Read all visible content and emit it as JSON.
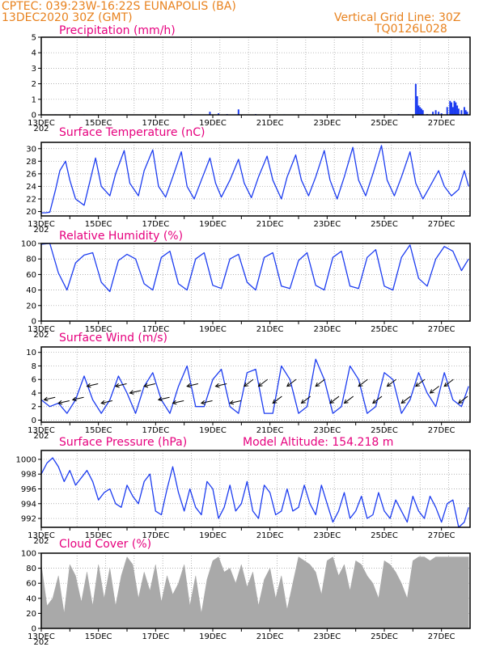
{
  "header": {
    "line1_left": "CPTEC:   039:23W-16:22S  EUNAPOLIS (BA)",
    "line2_left": "13DEC2020 30Z (GMT)",
    "line1_right": "Vertical Grid Line: 30Z",
    "line2_right": "TQ0126L028"
  },
  "colors": {
    "header": "#e8821e",
    "title": "#e6007e",
    "series": "#1c3cf0",
    "cloud": "#a9a9a9",
    "grid": "#9a9a9a"
  },
  "x_labels": [
    "13DEC",
    "15DEC",
    "17DEC",
    "19DEC",
    "21DEC",
    "23DEC",
    "25DEC",
    "27DEC"
  ],
  "x_year_fragment": "202",
  "chart_data": [
    {
      "type": "bar",
      "title": "Precipitation (mm/h)",
      "ylim": [
        0,
        5
      ],
      "yticks": [
        0,
        1,
        2,
        3,
        4,
        5
      ],
      "xlim_days": [
        13,
        28
      ],
      "x": [
        13.5,
        14.5,
        15.5,
        16.5,
        17.5,
        18.25,
        18.9,
        19.2,
        19.5,
        19.9,
        20.5,
        21.5,
        22.5,
        23.5,
        24.5,
        25.5,
        26.1,
        26.15,
        26.2,
        26.25,
        26.3,
        26.35,
        26.5,
        26.7,
        26.8,
        26.9,
        27.0,
        27.2,
        27.3,
        27.35,
        27.4,
        27.45,
        27.5,
        27.55,
        27.6,
        27.7,
        27.8,
        27.85,
        27.9
      ],
      "values": [
        0.03,
        0.03,
        0.03,
        0.03,
        0.03,
        0.05,
        0.2,
        0.1,
        0.05,
        0.35,
        0.05,
        0.03,
        0.03,
        0.03,
        0.03,
        0.05,
        2.0,
        1.2,
        0.6,
        0.5,
        0.4,
        0.3,
        0.05,
        0.2,
        0.3,
        0.2,
        0.1,
        0.5,
        0.9,
        0.8,
        0.5,
        0.9,
        0.8,
        0.6,
        0.4,
        0.3,
        0.5,
        0.3,
        0.2
      ]
    },
    {
      "type": "line",
      "title": "Surface Temperature (nC)",
      "ylim": [
        19.3,
        31
      ],
      "yticks": [
        20,
        22,
        24,
        26,
        28,
        30
      ],
      "x": [
        13.0,
        13.15,
        13.3,
        13.5,
        13.65,
        13.85,
        14.0,
        14.2,
        14.5,
        14.9,
        15.1,
        15.4,
        15.6,
        15.9,
        16.1,
        16.4,
        16.6,
        16.9,
        17.1,
        17.35,
        17.6,
        17.9,
        18.1,
        18.35,
        18.6,
        18.9,
        19.1,
        19.3,
        19.6,
        19.9,
        20.1,
        20.35,
        20.6,
        20.9,
        21.1,
        21.4,
        21.6,
        21.9,
        22.1,
        22.35,
        22.6,
        22.9,
        23.1,
        23.35,
        23.6,
        23.9,
        24.1,
        24.35,
        24.6,
        24.9,
        25.1,
        25.35,
        25.6,
        25.9,
        26.1,
        26.35,
        26.6,
        26.9,
        27.1,
        27.35,
        27.6,
        27.8,
        27.95
      ],
      "values": [
        19.8,
        19.8,
        19.9,
        23.5,
        26.5,
        28.0,
        25.0,
        22.0,
        21.0,
        28.5,
        24.0,
        22.5,
        26.0,
        29.7,
        24.5,
        22.5,
        26.5,
        29.8,
        24.0,
        22.3,
        25.5,
        29.5,
        24.0,
        22.0,
        25.0,
        28.5,
        24.5,
        22.3,
        25.0,
        28.3,
        24.5,
        22.2,
        25.5,
        28.8,
        25.0,
        22.0,
        25.5,
        29.0,
        25.0,
        22.5,
        25.5,
        29.7,
        25.0,
        22.0,
        25.5,
        30.2,
        25.0,
        22.5,
        26.0,
        30.5,
        25.0,
        22.5,
        25.5,
        29.5,
        24.5,
        22.0,
        24.0,
        26.5,
        24.0,
        22.5,
        23.5,
        26.5,
        24.0
      ]
    },
    {
      "type": "line",
      "title": "Relative Humidity (%)",
      "ylim": [
        0,
        100
      ],
      "yticks": [
        0,
        20,
        40,
        60,
        80,
        100
      ],
      "x": [
        13.0,
        13.3,
        13.6,
        13.9,
        14.2,
        14.5,
        14.8,
        15.1,
        15.4,
        15.7,
        16.0,
        16.3,
        16.6,
        16.9,
        17.2,
        17.5,
        17.8,
        18.1,
        18.4,
        18.7,
        19.0,
        19.3,
        19.6,
        19.9,
        20.2,
        20.5,
        20.8,
        21.1,
        21.4,
        21.7,
        22.0,
        22.3,
        22.6,
        22.9,
        23.2,
        23.5,
        23.8,
        24.1,
        24.4,
        24.7,
        25.0,
        25.3,
        25.6,
        25.9,
        26.2,
        26.5,
        26.8,
        27.1,
        27.4,
        27.7,
        27.95
      ],
      "values": [
        99,
        100,
        62,
        40,
        75,
        85,
        88,
        50,
        38,
        78,
        86,
        80,
        48,
        40,
        82,
        90,
        48,
        40,
        80,
        88,
        46,
        42,
        80,
        86,
        50,
        40,
        82,
        88,
        45,
        42,
        78,
        88,
        46,
        40,
        82,
        90,
        45,
        42,
        82,
        92,
        45,
        40,
        82,
        98,
        55,
        45,
        80,
        96,
        90,
        65,
        80
      ]
    },
    {
      "type": "line",
      "title": "Surface Wind (m/s)",
      "ylim": [
        -0.3,
        10.8
      ],
      "yticks": [
        0,
        2,
        4,
        6,
        8,
        10
      ],
      "x": [
        13.0,
        13.3,
        13.6,
        13.9,
        14.2,
        14.5,
        14.8,
        15.1,
        15.4,
        15.7,
        16.0,
        16.3,
        16.6,
        16.9,
        17.2,
        17.5,
        17.8,
        18.1,
        18.4,
        18.7,
        19.0,
        19.3,
        19.6,
        19.9,
        20.2,
        20.5,
        20.8,
        21.1,
        21.4,
        21.7,
        22.0,
        22.3,
        22.6,
        22.9,
        23.2,
        23.5,
        23.8,
        24.1,
        24.4,
        24.7,
        25.0,
        25.3,
        25.6,
        25.9,
        26.2,
        26.5,
        26.8,
        27.1,
        27.4,
        27.7,
        27.95
      ],
      "values": [
        3,
        2,
        2.5,
        1,
        3,
        6.5,
        3,
        1,
        3,
        6.5,
        4,
        1,
        5,
        7,
        3,
        1,
        5,
        8,
        2,
        2,
        6,
        7.5,
        2,
        1,
        7,
        7.5,
        1,
        1,
        8,
        6,
        1,
        2,
        9,
        6,
        1,
        2,
        8,
        6,
        1,
        2,
        7,
        6,
        1,
        3,
        7,
        4,
        2,
        7,
        3,
        2,
        5
      ]
    },
    {
      "type": "line",
      "title": "Surface Pressure (hPa)",
      "annotation": "Model Altitude: 154.218  m",
      "ylim": [
        990.8,
        1001.2
      ],
      "yticks": [
        992,
        994,
        996,
        998,
        1000
      ],
      "x": [
        13.0,
        13.2,
        13.4,
        13.6,
        13.8,
        14.0,
        14.2,
        14.4,
        14.6,
        14.8,
        15.0,
        15.2,
        15.4,
        15.6,
        15.8,
        16.0,
        16.2,
        16.4,
        16.6,
        16.8,
        17.0,
        17.2,
        17.4,
        17.6,
        17.8,
        18.0,
        18.2,
        18.4,
        18.6,
        18.8,
        19.0,
        19.2,
        19.4,
        19.6,
        19.8,
        20.0,
        20.2,
        20.4,
        20.6,
        20.8,
        21.0,
        21.2,
        21.4,
        21.6,
        21.8,
        22.0,
        22.2,
        22.4,
        22.6,
        22.8,
        23.0,
        23.2,
        23.4,
        23.6,
        23.8,
        24.0,
        24.2,
        24.4,
        24.6,
        24.8,
        25.0,
        25.2,
        25.4,
        25.6,
        25.8,
        26.0,
        26.2,
        26.4,
        26.6,
        26.8,
        27.0,
        27.2,
        27.4,
        27.6,
        27.8,
        27.95
      ],
      "values": [
        998,
        999.5,
        1000.2,
        999,
        997,
        998.5,
        996.5,
        997.5,
        998.5,
        997,
        994.5,
        995.5,
        996,
        994,
        993.5,
        996.5,
        995,
        994,
        997,
        998,
        993,
        992.5,
        996,
        999,
        995.5,
        993,
        996,
        993.5,
        992.5,
        997,
        996,
        992,
        993.5,
        996.5,
        993,
        994,
        997,
        993,
        992,
        996.5,
        995.5,
        992.5,
        993,
        996,
        993,
        993.5,
        996.5,
        994,
        992.5,
        996.5,
        994,
        991.5,
        993,
        995.5,
        992,
        993,
        995,
        992,
        992.5,
        995.5,
        993,
        992,
        994.5,
        993,
        991.5,
        995,
        993,
        992,
        995,
        993.5,
        991.5,
        994,
        994.5,
        990.8,
        991.5,
        993.5
      ]
    },
    {
      "type": "area",
      "title": "Cloud Cover (%)",
      "ylim": [
        0,
        100
      ],
      "yticks": [
        0,
        20,
        40,
        60,
        80,
        100
      ],
      "x": [
        13.0,
        13.2,
        13.4,
        13.6,
        13.8,
        14.0,
        14.2,
        14.4,
        14.6,
        14.8,
        15.0,
        15.2,
        15.4,
        15.6,
        15.8,
        16.0,
        16.2,
        16.4,
        16.6,
        16.8,
        17.0,
        17.2,
        17.4,
        17.6,
        17.8,
        18.0,
        18.2,
        18.4,
        18.6,
        18.8,
        19.0,
        19.2,
        19.4,
        19.6,
        19.8,
        20.0,
        20.2,
        20.4,
        20.6,
        20.8,
        21.0,
        21.2,
        21.4,
        21.6,
        21.8,
        22.0,
        22.2,
        22.4,
        22.6,
        22.8,
        23.0,
        23.2,
        23.4,
        23.6,
        23.8,
        24.0,
        24.2,
        24.4,
        24.6,
        24.8,
        25.0,
        25.2,
        25.4,
        25.6,
        25.8,
        26.0,
        26.2,
        26.4,
        26.6,
        26.8,
        27.0,
        27.2,
        27.4,
        27.6,
        27.8,
        27.95
      ],
      "values": [
        85,
        30,
        40,
        70,
        20,
        85,
        70,
        35,
        75,
        30,
        85,
        40,
        80,
        30,
        70,
        95,
        85,
        40,
        75,
        50,
        85,
        35,
        70,
        45,
        60,
        85,
        30,
        70,
        20,
        65,
        90,
        95,
        75,
        80,
        60,
        85,
        55,
        75,
        30,
        65,
        80,
        40,
        70,
        25,
        60,
        95,
        90,
        85,
        75,
        45,
        90,
        95,
        70,
        85,
        50,
        90,
        85,
        70,
        60,
        40,
        90,
        85,
        75,
        60,
        40,
        90,
        95,
        95,
        90,
        95,
        95,
        95,
        95,
        95,
        95,
        95
      ]
    }
  ]
}
